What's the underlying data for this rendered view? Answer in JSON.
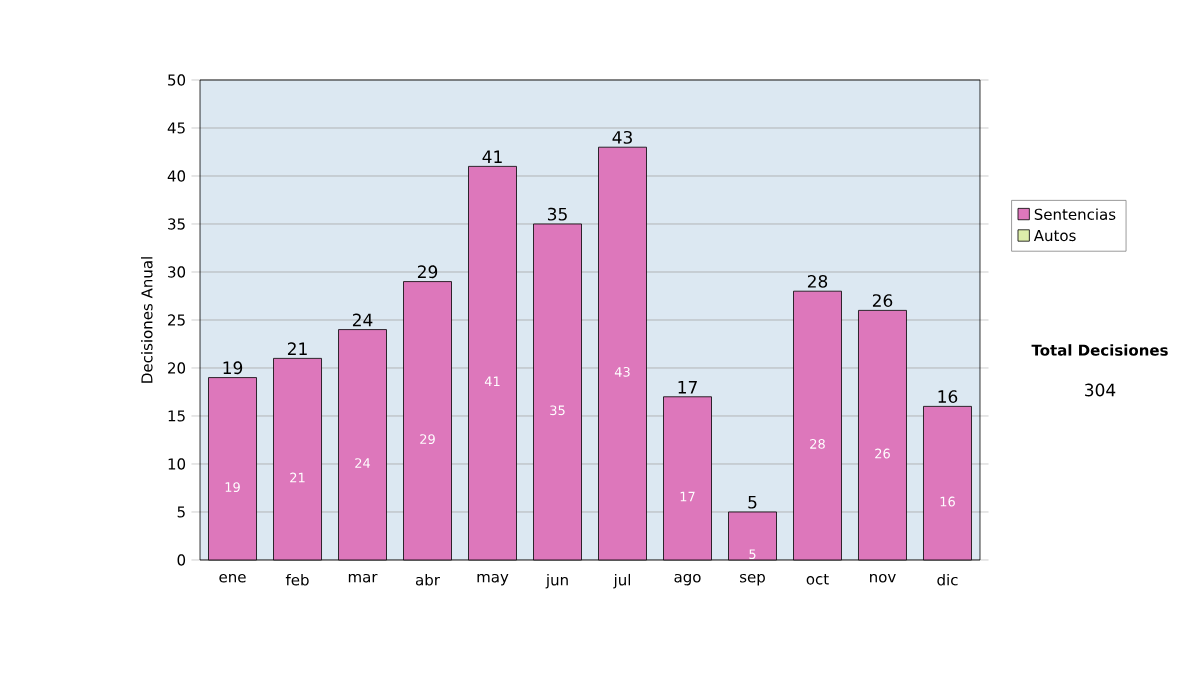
{
  "chart_data": {
    "type": "bar",
    "stacked": true,
    "ylabel": "Decisiones Anual",
    "categories": [
      "ene",
      "feb",
      "mar",
      "abr",
      "may",
      "jun",
      "jul",
      "ago",
      "sep",
      "oct",
      "nov",
      "dic"
    ],
    "series": [
      {
        "name": "Sentencias",
        "color": "#dd77bb",
        "values": [
          19,
          21,
          24,
          29,
          41,
          35,
          43,
          17,
          5,
          28,
          26,
          16
        ],
        "value_labels": [
          "19",
          "21",
          "24",
          "29",
          "41",
          "35",
          "43",
          "17",
          "5",
          "28",
          "26",
          "16"
        ]
      },
      {
        "name": "Autos",
        "color": "#ddeeaa",
        "values": [
          0,
          0,
          0,
          0,
          0,
          0,
          0,
          0,
          0,
          0,
          0,
          0
        ]
      }
    ],
    "totals": [
      "19",
      "21",
      "24",
      "29",
      "41",
      "35",
      "43",
      "17",
      "5",
      "28",
      "26",
      "16"
    ],
    "ylim": [
      0,
      50
    ],
    "yticks": [
      0,
      5,
      10,
      15,
      20,
      25,
      30,
      35,
      40,
      45,
      50
    ],
    "grid": "y",
    "legend": "right",
    "annotations": [
      "Total Decisiones",
      "304"
    ]
  }
}
